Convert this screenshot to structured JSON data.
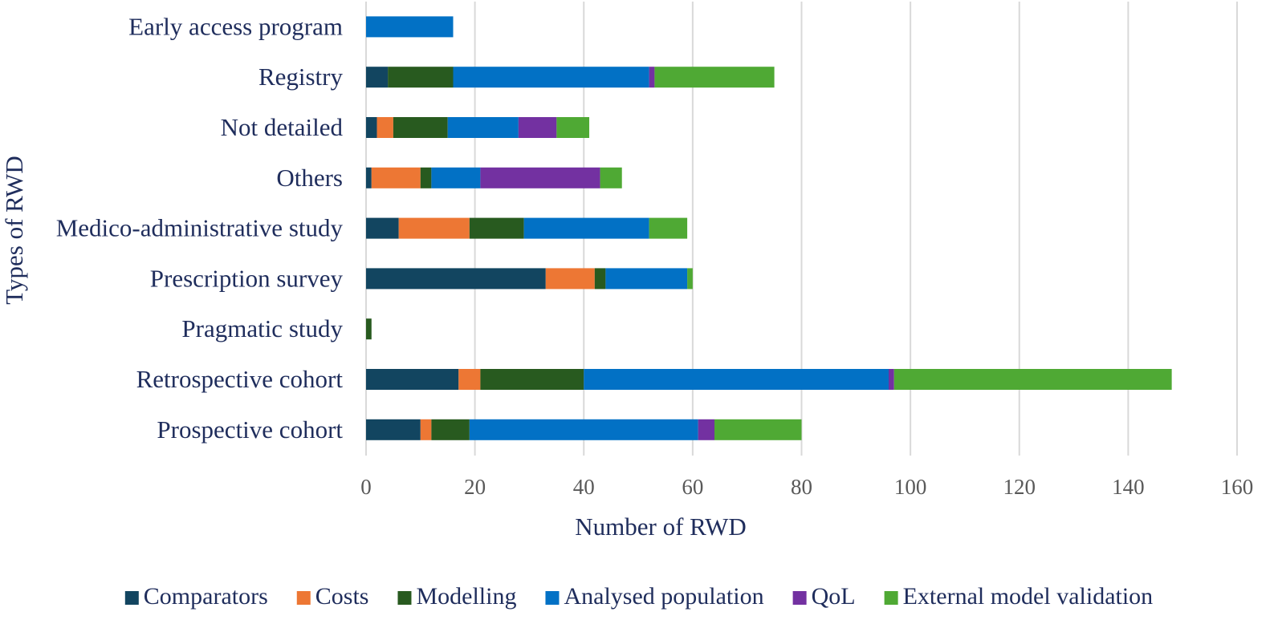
{
  "chart_data": {
    "type": "bar",
    "orientation": "horizontal",
    "stacked": true,
    "title": "",
    "xlabel": "Number of RWD",
    "ylabel": "Types of RWD",
    "xlim": [
      0,
      160
    ],
    "xticks": [
      0,
      20,
      40,
      60,
      80,
      100,
      120,
      140,
      160
    ],
    "grid": "vertical",
    "legend_position": "bottom",
    "categories": [
      "Early access program",
      "Registry",
      "Not detailed",
      "Others",
      "Medico-administrative study",
      "Prescription survey",
      "Pragmatic study",
      "Retrospective cohort",
      "Prospective cohort"
    ],
    "series": [
      {
        "name": "Comparators",
        "color": "#124560",
        "values": [
          0,
          4,
          2,
          1,
          6,
          33,
          0,
          17,
          10
        ]
      },
      {
        "name": "Costs",
        "color": "#ed7734",
        "values": [
          0,
          0,
          3,
          9,
          13,
          9,
          0,
          4,
          2
        ]
      },
      {
        "name": "Modelling",
        "color": "#285a1f",
        "values": [
          0,
          12,
          10,
          2,
          10,
          2,
          1,
          19,
          7
        ]
      },
      {
        "name": "Analysed population",
        "color": "#0271c5",
        "values": [
          16,
          36,
          13,
          9,
          23,
          15,
          0,
          56,
          42
        ]
      },
      {
        "name": "QoL",
        "color": "#7331a1",
        "values": [
          0,
          1,
          7,
          22,
          0,
          0,
          0,
          1,
          3
        ]
      },
      {
        "name": "External model validation",
        "color": "#4fa934",
        "values": [
          0,
          22,
          6,
          4,
          7,
          1,
          0,
          51,
          16
        ]
      }
    ]
  }
}
